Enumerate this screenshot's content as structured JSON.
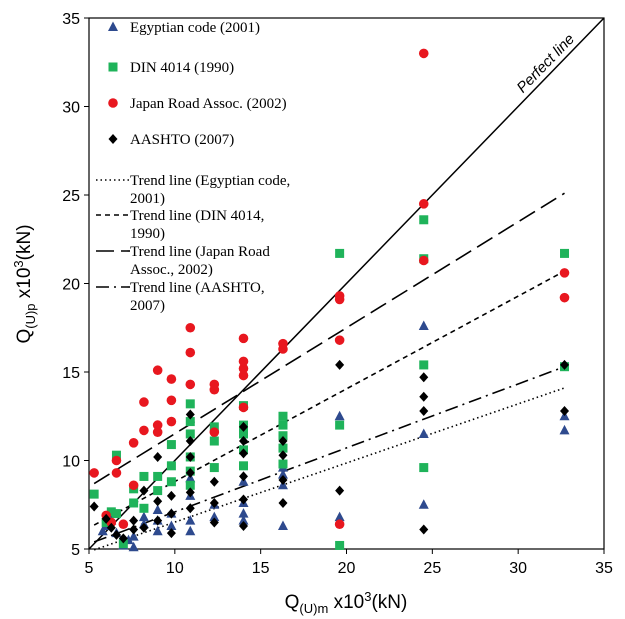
{
  "chart_data": {
    "type": "scatter",
    "xlim": [
      5,
      35
    ],
    "ylim": [
      5,
      35
    ],
    "xticks": [
      "5",
      "10",
      "15",
      "20",
      "25",
      "30",
      "35"
    ],
    "yticks": [
      "5",
      "10",
      "15",
      "20",
      "25",
      "30",
      "35"
    ],
    "grid": false,
    "legend_position": "top-left",
    "xlabel": {
      "main": "Q",
      "sub": "(U)m",
      "mid": " x10",
      "sup": "3",
      "end": "(kN)"
    },
    "ylabel": {
      "main": "Q",
      "sub": "(U)p",
      "mid": " x10",
      "sup": "3",
      "end": "(kN)"
    },
    "perfect_line_label": "Perfect line",
    "perfect_line": {
      "x": [
        5,
        35
      ],
      "y": [
        5,
        35
      ]
    },
    "series": [
      {
        "name": "Egyptian code (2001)",
        "marker": "triangle",
        "color": "#2e4a8e",
        "trend_name_lines": [
          "Trend line (Egyptian code,",
          "2001)"
        ],
        "trend_style": "dotted",
        "trend": {
          "x": [
            5.3,
            32.7
          ],
          "y": [
            4.95,
            14.1
          ]
        },
        "points": [
          [
            5.8,
            6.0
          ],
          [
            6.0,
            6.3
          ],
          [
            6.3,
            6.6
          ],
          [
            6.6,
            5.9
          ],
          [
            7.0,
            5.2
          ],
          [
            7.3,
            5.5
          ],
          [
            7.6,
            5.7
          ],
          [
            7.6,
            5.1
          ],
          [
            8.2,
            6.4
          ],
          [
            8.2,
            6.8
          ],
          [
            9.0,
            6.0
          ],
          [
            9.0,
            6.6
          ],
          [
            9.0,
            7.2
          ],
          [
            9.8,
            6.3
          ],
          [
            9.8,
            7.0
          ],
          [
            10.9,
            6.0
          ],
          [
            10.9,
            6.6
          ],
          [
            10.9,
            8.0
          ],
          [
            10.9,
            9.0
          ],
          [
            12.3,
            6.8
          ],
          [
            12.3,
            7.5
          ],
          [
            14.0,
            6.6
          ],
          [
            14.0,
            7.0
          ],
          [
            14.0,
            7.6
          ],
          [
            14.0,
            8.8
          ],
          [
            16.3,
            6.3
          ],
          [
            16.3,
            8.6
          ],
          [
            16.3,
            9.2
          ],
          [
            16.3,
            9.6
          ],
          [
            19.6,
            6.8
          ],
          [
            19.6,
            12.5
          ],
          [
            24.5,
            7.5
          ],
          [
            24.5,
            11.5
          ],
          [
            24.5,
            17.6
          ],
          [
            32.7,
            11.7
          ],
          [
            32.7,
            12.5
          ]
        ]
      },
      {
        "name": "DIN 4014 (1990)",
        "marker": "square",
        "color": "#1fb35a",
        "trend_name_lines": [
          "Trend line (DIN 4014,",
          "1990)"
        ],
        "trend_style": "short-dash",
        "trend": {
          "x": [
            5.3,
            32.7
          ],
          "y": [
            6.35,
            20.7
          ]
        },
        "points": [
          [
            5.3,
            8.1
          ],
          [
            6.0,
            6.5
          ],
          [
            6.3,
            7.1
          ],
          [
            6.6,
            10.3
          ],
          [
            6.6,
            7.0
          ],
          [
            7.0,
            5.3
          ],
          [
            7.6,
            7.6
          ],
          [
            7.6,
            8.4
          ],
          [
            8.2,
            9.1
          ],
          [
            8.2,
            7.3
          ],
          [
            9.0,
            8.3
          ],
          [
            9.0,
            9.1
          ],
          [
            9.8,
            8.8
          ],
          [
            9.8,
            9.7
          ],
          [
            9.8,
            10.9
          ],
          [
            10.9,
            8.6
          ],
          [
            10.9,
            9.4
          ],
          [
            10.9,
            10.2
          ],
          [
            10.9,
            11.5
          ],
          [
            10.9,
            12.2
          ],
          [
            10.9,
            13.2
          ],
          [
            12.3,
            9.6
          ],
          [
            12.3,
            11.1
          ],
          [
            12.3,
            11.9
          ],
          [
            14.0,
            9.7
          ],
          [
            14.0,
            10.6
          ],
          [
            14.0,
            11.5
          ],
          [
            14.0,
            12.0
          ],
          [
            14.0,
            13.1
          ],
          [
            16.3,
            9.8
          ],
          [
            16.3,
            10.7
          ],
          [
            16.3,
            11.4
          ],
          [
            16.3,
            12.0
          ],
          [
            16.3,
            12.5
          ],
          [
            19.6,
            5.2
          ],
          [
            19.6,
            12.0
          ],
          [
            19.6,
            21.7
          ],
          [
            24.5,
            9.6
          ],
          [
            24.5,
            15.4
          ],
          [
            24.5,
            21.4
          ],
          [
            24.5,
            23.6
          ],
          [
            32.7,
            15.3
          ],
          [
            32.7,
            21.7
          ]
        ]
      },
      {
        "name": "Japan Road Assoc. (2002)",
        "marker": "circle",
        "color": "#e8171f",
        "trend_name_lines": [
          "Trend line (Japan Road",
          "Assoc., 2002)"
        ],
        "trend_style": "long-dash",
        "trend": {
          "x": [
            5.3,
            32.7
          ],
          "y": [
            8.7,
            25.1
          ]
        },
        "points": [
          [
            5.3,
            9.3
          ],
          [
            6.0,
            6.9
          ],
          [
            6.3,
            6.5
          ],
          [
            6.6,
            9.3
          ],
          [
            6.6,
            10.0
          ],
          [
            7.0,
            6.4
          ],
          [
            7.6,
            8.6
          ],
          [
            7.6,
            11.0
          ],
          [
            8.2,
            11.7
          ],
          [
            8.2,
            13.3
          ],
          [
            9.0,
            11.6
          ],
          [
            9.0,
            12.0
          ],
          [
            9.0,
            15.1
          ],
          [
            9.8,
            12.2
          ],
          [
            9.8,
            13.4
          ],
          [
            9.8,
            14.6
          ],
          [
            10.9,
            14.3
          ],
          [
            10.9,
            16.1
          ],
          [
            10.9,
            17.5
          ],
          [
            12.3,
            11.6
          ],
          [
            12.3,
            14.0
          ],
          [
            12.3,
            14.3
          ],
          [
            14.0,
            13.0
          ],
          [
            14.0,
            14.8
          ],
          [
            14.0,
            15.2
          ],
          [
            14.0,
            15.6
          ],
          [
            14.0,
            16.9
          ],
          [
            16.3,
            16.3
          ],
          [
            16.3,
            16.6
          ],
          [
            19.6,
            6.4
          ],
          [
            19.6,
            16.8
          ],
          [
            19.6,
            19.1
          ],
          [
            19.6,
            19.3
          ],
          [
            24.5,
            21.3
          ],
          [
            24.5,
            24.5
          ],
          [
            24.5,
            33.0
          ],
          [
            32.7,
            19.2
          ],
          [
            32.7,
            20.6
          ]
        ]
      },
      {
        "name": "AASHTO (2007)",
        "marker": "diamond",
        "color": "#000000",
        "trend_name_lines": [
          "Trend line (AASHTO,",
          "2007)"
        ],
        "trend_style": "dash-dot",
        "trend": {
          "x": [
            5.3,
            32.7
          ],
          "y": [
            5.4,
            15.3
          ]
        },
        "points": [
          [
            5.3,
            7.4
          ],
          [
            6.0,
            6.7
          ],
          [
            6.3,
            6.2
          ],
          [
            6.6,
            5.8
          ],
          [
            7.0,
            5.6
          ],
          [
            7.6,
            6.1
          ],
          [
            7.6,
            6.6
          ],
          [
            8.2,
            6.2
          ],
          [
            8.2,
            8.3
          ],
          [
            9.0,
            6.6
          ],
          [
            9.0,
            7.7
          ],
          [
            9.0,
            10.2
          ],
          [
            9.8,
            5.9
          ],
          [
            9.8,
            7.0
          ],
          [
            9.8,
            8.0
          ],
          [
            10.9,
            7.3
          ],
          [
            10.9,
            8.2
          ],
          [
            10.9,
            9.3
          ],
          [
            10.9,
            10.2
          ],
          [
            10.9,
            11.1
          ],
          [
            10.9,
            12.6
          ],
          [
            12.3,
            6.5
          ],
          [
            12.3,
            7.6
          ],
          [
            12.3,
            8.8
          ],
          [
            14.0,
            6.3
          ],
          [
            14.0,
            7.8
          ],
          [
            14.0,
            9.1
          ],
          [
            14.0,
            10.4
          ],
          [
            14.0,
            11.1
          ],
          [
            14.0,
            11.9
          ],
          [
            16.3,
            7.6
          ],
          [
            16.3,
            8.9
          ],
          [
            16.3,
            10.3
          ],
          [
            16.3,
            11.1
          ],
          [
            19.6,
            8.3
          ],
          [
            19.6,
            15.4
          ],
          [
            24.5,
            6.1
          ],
          [
            24.5,
            12.8
          ],
          [
            24.5,
            13.6
          ],
          [
            24.5,
            14.7
          ],
          [
            32.7,
            12.8
          ],
          [
            32.7,
            15.4
          ]
        ]
      }
    ]
  }
}
